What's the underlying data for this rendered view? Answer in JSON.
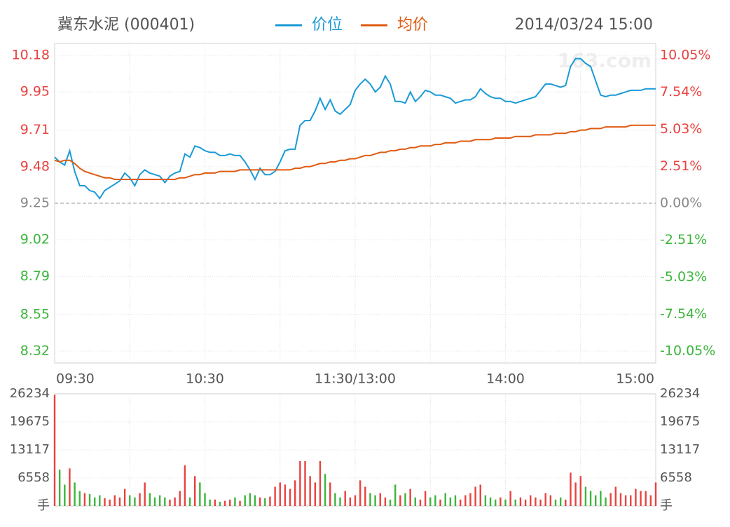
{
  "chart_data": {
    "type": "intraday",
    "title": "冀东水泥 (000401)",
    "datetime": "2014/03/24 15:00",
    "watermark": "163.com",
    "prev_close": 9.25,
    "up_color": "#e8423f",
    "down_color": "#3cb53c",
    "flat_color": "#888888",
    "x": [
      0,
      2,
      4,
      6,
      8,
      10,
      12,
      14,
      16,
      18,
      20,
      22,
      24,
      26,
      28,
      30,
      32,
      34,
      36,
      38,
      40,
      42,
      44,
      46,
      48,
      50,
      52,
      54,
      56,
      58,
      60,
      62,
      64,
      66,
      68,
      70,
      72,
      74,
      76,
      78,
      80,
      82,
      84,
      86,
      88,
      90,
      92,
      94,
      96,
      98,
      100,
      102,
      104,
      106,
      108,
      110,
      112,
      114,
      116,
      118,
      120,
      122,
      124,
      126,
      128,
      130,
      132,
      134,
      136,
      138,
      140,
      142,
      144,
      146,
      148,
      150,
      152,
      154,
      156,
      158,
      160,
      162,
      164,
      166,
      168,
      170,
      172,
      174,
      176,
      178,
      180,
      182,
      184,
      186,
      188,
      190,
      192,
      194,
      196,
      198,
      200,
      202,
      204,
      206,
      208,
      210,
      212,
      214,
      216,
      218,
      220,
      222,
      224,
      226,
      228,
      230,
      232,
      234,
      236,
      238,
      240
    ],
    "xlim": [
      0,
      240
    ],
    "xticks": [
      {
        "value": 0,
        "label": "09:30"
      },
      {
        "value": 60,
        "label": "10:30"
      },
      {
        "value": 120,
        "label": "11:30/13:00"
      },
      {
        "value": 180,
        "label": "14:00"
      },
      {
        "value": 240,
        "label": "15:00"
      }
    ],
    "xminor": [
      30,
      90,
      150,
      210
    ],
    "ylim": [
      8.245,
      10.255
    ],
    "yticks": [
      10.18,
      9.95,
      9.71,
      9.48,
      9.25,
      9.02,
      8.79,
      8.55,
      8.32
    ],
    "y2lim": [
      -10.86,
      10.86
    ],
    "y2ticks": [
      {
        "value": 10.05,
        "label": "10.05%"
      },
      {
        "value": 7.54,
        "label": "7.54%"
      },
      {
        "value": 5.03,
        "label": "5.03%"
      },
      {
        "value": 2.51,
        "label": "2.51%"
      },
      {
        "value": 0,
        "label": "0.00%"
      },
      {
        "value": -2.51,
        "label": "-2.51%"
      },
      {
        "value": -5.03,
        "label": "-5.03%"
      },
      {
        "value": -7.54,
        "label": "-7.54%"
      },
      {
        "value": -10.05,
        "label": "-10.05%"
      }
    ],
    "series": [
      {
        "name": "价位",
        "color": "#1a9ad6",
        "values": [
          9.54,
          9.51,
          9.49,
          9.58,
          9.45,
          9.36,
          9.36,
          9.33,
          9.32,
          9.28,
          9.33,
          9.35,
          9.37,
          9.39,
          9.44,
          9.41,
          9.36,
          9.43,
          9.46,
          9.44,
          9.43,
          9.42,
          9.38,
          9.42,
          9.44,
          9.45,
          9.56,
          9.54,
          9.61,
          9.6,
          9.58,
          9.57,
          9.57,
          9.55,
          9.55,
          9.56,
          9.55,
          9.55,
          9.51,
          9.46,
          9.4,
          9.47,
          9.43,
          9.43,
          9.45,
          9.51,
          9.58,
          9.59,
          9.59,
          9.74,
          9.77,
          9.77,
          9.83,
          9.91,
          9.84,
          9.9,
          9.83,
          9.81,
          9.84,
          9.87,
          9.96,
          10.0,
          10.03,
          10.0,
          9.95,
          9.98,
          10.05,
          10.0,
          9.89,
          9.89,
          9.88,
          9.95,
          9.89,
          9.92,
          9.96,
          9.95,
          9.93,
          9.93,
          9.92,
          9.91,
          9.88,
          9.89,
          9.9,
          9.9,
          9.92,
          9.97,
          9.94,
          9.92,
          9.91,
          9.91,
          9.89,
          9.89,
          9.88,
          9.89,
          9.9,
          9.91,
          9.92,
          9.96,
          10.0,
          10.0,
          9.99,
          9.98,
          9.99,
          10.11,
          10.16,
          10.16,
          10.13,
          10.11,
          10.02,
          9.93,
          9.92,
          9.93,
          9.93,
          9.94,
          9.95,
          9.96,
          9.96,
          9.96,
          9.97,
          9.97,
          9.97
        ]
      },
      {
        "name": "均价",
        "color": "#e05a10",
        "values": [
          9.52,
          9.51,
          9.52,
          9.52,
          9.5,
          9.47,
          9.45,
          9.44,
          9.43,
          9.42,
          9.41,
          9.41,
          9.4,
          9.4,
          9.4,
          9.4,
          9.4,
          9.4,
          9.4,
          9.4,
          9.4,
          9.4,
          9.4,
          9.4,
          9.4,
          9.41,
          9.41,
          9.42,
          9.43,
          9.43,
          9.44,
          9.44,
          9.44,
          9.45,
          9.45,
          9.45,
          9.45,
          9.46,
          9.46,
          9.46,
          9.46,
          9.46,
          9.46,
          9.46,
          9.46,
          9.46,
          9.46,
          9.46,
          9.47,
          9.47,
          9.48,
          9.48,
          9.49,
          9.5,
          9.5,
          9.51,
          9.51,
          9.52,
          9.52,
          9.53,
          9.53,
          9.54,
          9.55,
          9.55,
          9.56,
          9.57,
          9.57,
          9.58,
          9.58,
          9.59,
          9.59,
          9.6,
          9.6,
          9.61,
          9.61,
          9.61,
          9.62,
          9.62,
          9.63,
          9.63,
          9.63,
          9.64,
          9.64,
          9.64,
          9.65,
          9.65,
          9.65,
          9.65,
          9.66,
          9.66,
          9.66,
          9.66,
          9.67,
          9.67,
          9.67,
          9.67,
          9.68,
          9.68,
          9.68,
          9.68,
          9.69,
          9.69,
          9.69,
          9.7,
          9.7,
          9.71,
          9.71,
          9.72,
          9.72,
          9.72,
          9.73,
          9.73,
          9.73,
          9.73,
          9.73,
          9.74,
          9.74,
          9.74,
          9.74,
          9.74,
          9.74
        ]
      }
    ],
    "volume": {
      "vlim": [
        0,
        26234
      ],
      "vticks": [
        26234,
        19675,
        13117,
        6558,
        {
          "value": 0,
          "label": "手"
        }
      ],
      "values": [
        26000,
        8500,
        5000,
        8800,
        5500,
        3500,
        3000,
        2800,
        2000,
        2500,
        1800,
        1500,
        2500,
        2000,
        4000,
        2500,
        2000,
        3000,
        5500,
        3000,
        2000,
        2500,
        2000,
        1500,
        2000,
        3500,
        9500,
        2000,
        7000,
        5500,
        3000,
        1500,
        1500,
        1000,
        1200,
        1500,
        2000,
        1200,
        2500,
        3000,
        2500,
        2000,
        1800,
        2200,
        4500,
        5500,
        5000,
        4000,
        6000,
        10500,
        10500,
        7000,
        5500,
        10500,
        7500,
        5500,
        3000,
        2000,
        3500,
        2000,
        2500,
        6000,
        4500,
        3000,
        2500,
        3000,
        2000,
        1500,
        5000,
        2500,
        3000,
        4000,
        2000,
        1500,
        3500,
        2000,
        2500,
        1500,
        3000,
        2000,
        2500,
        1500,
        2500,
        3000,
        4500,
        5000,
        2500,
        2000,
        1500,
        2000,
        1500,
        3500,
        1500,
        2000,
        1500,
        2500,
        2000,
        1500,
        3000,
        2500,
        1500,
        2000,
        1500,
        7800,
        5500,
        7000,
        4500,
        3500,
        2500,
        3500,
        2000,
        3000,
        4500,
        3000,
        2500,
        2500,
        4000,
        3500,
        3500,
        2500,
        5500
      ]
    }
  }
}
